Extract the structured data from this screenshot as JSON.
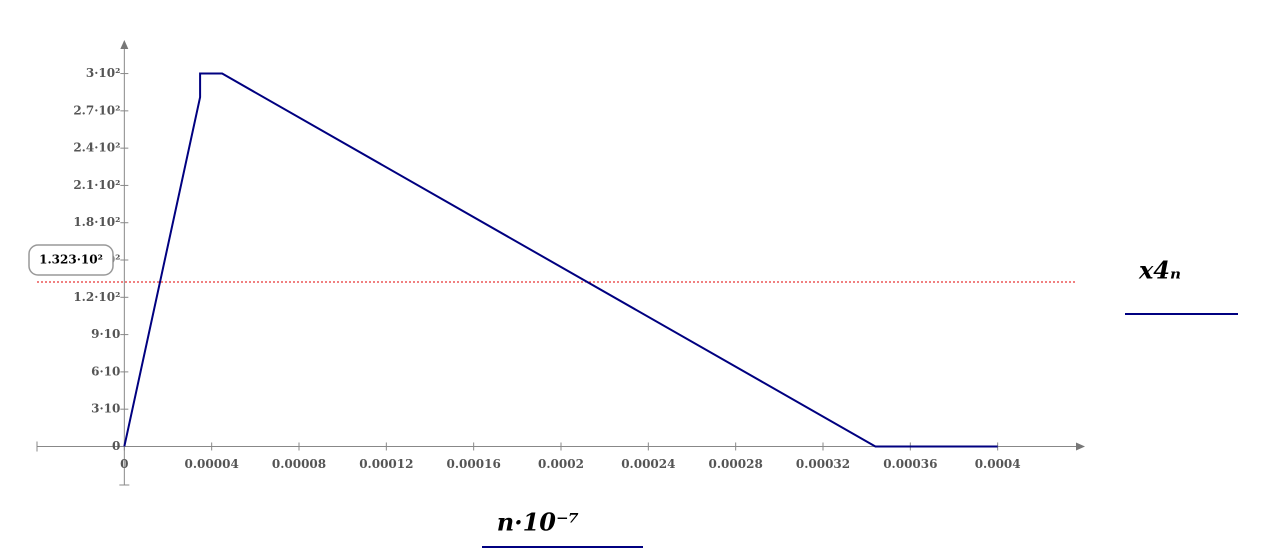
{
  "chart_data": {
    "type": "line",
    "x_label": "n·10⁻⁷",
    "y_label": "x4ₙ",
    "series": [
      {
        "name": "x4ₙ",
        "color": "#000080",
        "x": [
          0,
          3.47e-05,
          3.47e-05,
          4.48e-05,
          0.000344,
          0.0004
        ],
        "values": [
          0,
          281,
          300,
          300,
          0,
          0
        ]
      }
    ],
    "xlim": [
      -4e-05,
      0.00044
    ],
    "ylim": [
      -31,
      327
    ],
    "xticks": [
      0,
      4e-05,
      8e-05,
      0.00012,
      0.00016,
      0.0002,
      0.00024,
      0.00028,
      0.00032,
      0.00036,
      0.0004
    ],
    "yticks": [
      0,
      {
        "value": 30,
        "label": "3·10"
      },
      {
        "value": 60,
        "label": "6·10"
      },
      {
        "value": 90,
        "label": "9·10"
      },
      {
        "value": 120,
        "label": "1.2·10²"
      },
      {
        "value": 150,
        "label": "1.5·10²"
      },
      {
        "value": 180,
        "label": "1.8·10²"
      },
      {
        "value": 210,
        "label": "2.1·10²"
      },
      {
        "value": 240,
        "label": "2.4·10²"
      },
      {
        "value": 270,
        "label": "2.7·10²"
      },
      {
        "value": 300,
        "label": "3·10²"
      }
    ],
    "marker": {
      "value": 132.3,
      "label": "1.323·10²",
      "color": "#e00000"
    }
  }
}
